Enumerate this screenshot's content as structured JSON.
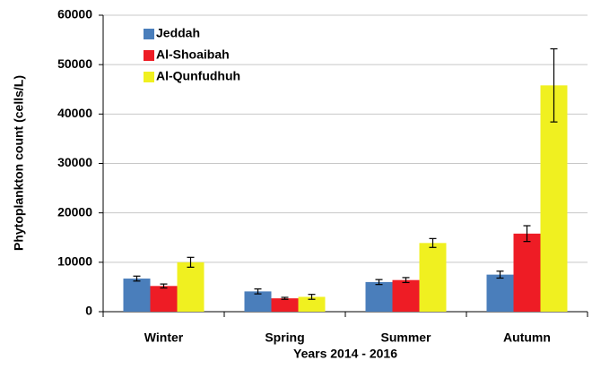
{
  "chart_data": {
    "type": "bar",
    "ylabel": "Phytoplankton count (cells/L)",
    "xlabel": "Years 2014 - 2016",
    "categories": [
      "Winter",
      "Spring",
      "Summer",
      "Autumn"
    ],
    "series": [
      {
        "name": "Jeddah",
        "color": "#4a7ebb",
        "values": [
          6700,
          4100,
          6000,
          7500
        ],
        "errors": [
          500,
          500,
          500,
          700
        ]
      },
      {
        "name": "Al-Shoaibah",
        "color": "#ee1c25",
        "values": [
          5200,
          2700,
          6400,
          15800
        ],
        "errors": [
          400,
          200,
          500,
          1600
        ]
      },
      {
        "name": "Al-Qunfudhuh",
        "color": "#f0f020",
        "values": [
          10000,
          3000,
          13900,
          45800
        ],
        "errors": [
          1000,
          500,
          900,
          7400
        ]
      }
    ],
    "ylim": [
      0,
      60000
    ],
    "yticks": [
      0,
      10000,
      20000,
      30000,
      40000,
      50000,
      60000
    ],
    "grid": true,
    "legend": "top-left"
  }
}
